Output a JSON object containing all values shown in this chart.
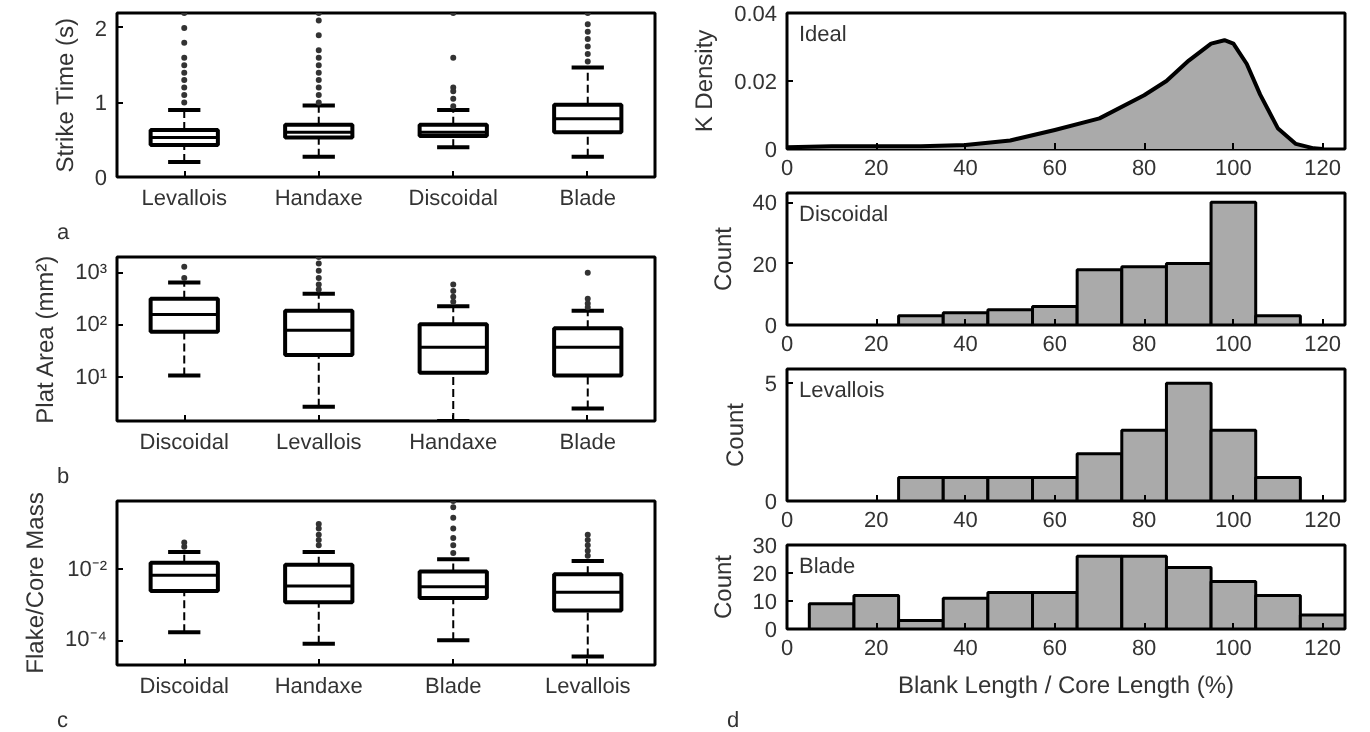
{
  "chart_data": [
    {
      "type": "box",
      "ylabel": "Strike Time (s)",
      "annotations": [
        "a"
      ],
      "categories": [
        "Levallois",
        "Handaxe",
        "Discoidal",
        "Blade"
      ],
      "ylim": [
        0,
        2.2
      ],
      "yticks": [
        0,
        1,
        2
      ],
      "boxes": [
        {
          "low": 0.2,
          "q1": 0.43,
          "median": 0.53,
          "q3": 0.63,
          "high": 0.9,
          "outliers": [
            1.0,
            1.1,
            1.2,
            1.3,
            1.4,
            1.5,
            1.6,
            1.8,
            2.0,
            2.2
          ]
        },
        {
          "low": 0.27,
          "q1": 0.53,
          "median": 0.6,
          "q3": 0.7,
          "high": 0.96,
          "outliers": [
            1.0,
            1.1,
            1.2,
            1.3,
            1.4,
            1.5,
            1.6,
            1.7,
            1.9,
            2.1,
            2.2
          ]
        },
        {
          "low": 0.4,
          "q1": 0.55,
          "median": 0.6,
          "q3": 0.7,
          "high": 0.9,
          "outliers": [
            0.95,
            1.05,
            1.15,
            1.2,
            1.6,
            2.2
          ]
        },
        {
          "low": 0.27,
          "q1": 0.6,
          "median": 0.78,
          "q3": 0.97,
          "high": 1.47,
          "outliers": [
            1.55,
            1.65,
            1.75,
            1.85,
            1.95,
            2.05,
            2.2
          ]
        }
      ]
    },
    {
      "type": "box",
      "ylabel": "Plat Area (mm²)",
      "annotations": [
        "b"
      ],
      "categories": [
        "Discoidal",
        "Levallois",
        "Handaxe",
        "Blade"
      ],
      "log": true,
      "ylim": [
        1.5,
        2000
      ],
      "yticks": [
        {
          "value": 10,
          "label": "10¹"
        },
        {
          "value": 100,
          "label": "10²"
        },
        {
          "value": 1000,
          "label": "10³"
        }
      ],
      "boxes": [
        {
          "low": 11,
          "q1": 75,
          "median": 160,
          "q3": 320,
          "high": 650,
          "outliers": [
            800,
            1300
          ]
        },
        {
          "low": 2.8,
          "q1": 27,
          "median": 80,
          "q3": 190,
          "high": 400,
          "outliers": [
            480,
            600,
            800,
            1100,
            1500,
            2000
          ]
        },
        {
          "low": 1.5,
          "q1": 12.5,
          "median": 38,
          "q3": 105,
          "high": 230,
          "outliers": [
            280,
            350,
            450,
            600
          ]
        },
        {
          "low": 2.6,
          "q1": 11,
          "median": 38,
          "q3": 88,
          "high": 190,
          "outliers": [
            220,
            260,
            320,
            1000
          ]
        }
      ]
    },
    {
      "type": "box",
      "ylabel": "Flake/Core Mass",
      "annotations": [
        "c"
      ],
      "categories": [
        "Discoidal",
        "Handaxe",
        "Blade",
        "Levallois"
      ],
      "log": true,
      "ylim": [
        2e-05,
        0.9
      ],
      "yticks": [
        {
          "value": 0.0001,
          "label": "10⁻⁴"
        },
        {
          "value": 0.01,
          "label": "10⁻²"
        }
      ],
      "boxes": [
        {
          "low": 0.00017,
          "q1": 0.0025,
          "median": 0.007,
          "q3": 0.016,
          "high": 0.032,
          "outliers": [
            0.045,
            0.06
          ]
        },
        {
          "low": 8e-05,
          "q1": 0.0012,
          "median": 0.0035,
          "q3": 0.014,
          "high": 0.032,
          "outliers": [
            0.05,
            0.07,
            0.1,
            0.15,
            0.2
          ]
        },
        {
          "low": 0.0001,
          "q1": 0.0016,
          "median": 0.0033,
          "q3": 0.009,
          "high": 0.02,
          "outliers": [
            0.03,
            0.05,
            0.08,
            0.15,
            0.3,
            0.6,
            0.9
          ]
        },
        {
          "low": 3.5e-05,
          "q1": 0.0007,
          "median": 0.0023,
          "q3": 0.0075,
          "high": 0.018,
          "outliers": [
            0.025,
            0.035,
            0.05,
            0.07,
            0.1
          ]
        }
      ]
    },
    {
      "type": "area",
      "ylabel": "K Density",
      "annotations": [
        "Ideal"
      ],
      "xlim": [
        0,
        125
      ],
      "xticks": [
        0,
        20,
        40,
        60,
        80,
        100,
        120
      ],
      "ylim": [
        0,
        0.04
      ],
      "yticks": [
        0,
        0.02,
        0.04
      ],
      "color": "#aaaaaa",
      "x": [
        0,
        10,
        20,
        30,
        40,
        50,
        60,
        70,
        80,
        85,
        90,
        95,
        98,
        100,
        103,
        106,
        110,
        114,
        118,
        120
      ],
      "values": [
        0.0005,
        0.0008,
        0.0008,
        0.0008,
        0.0012,
        0.0025,
        0.0056,
        0.009,
        0.0158,
        0.02,
        0.026,
        0.031,
        0.032,
        0.031,
        0.025,
        0.016,
        0.006,
        0.0015,
        0.0002,
        0
      ]
    },
    {
      "type": "histogram",
      "ylabel": "Count",
      "annotations": [
        "Discoidal"
      ],
      "xlim": [
        0,
        125
      ],
      "xticks": [
        0,
        20,
        40,
        60,
        80,
        100,
        120
      ],
      "ylim": [
        0,
        43
      ],
      "yticks": [
        0,
        20,
        40
      ],
      "color": "#aaaaaa",
      "bins": [
        25,
        35,
        45,
        55,
        65,
        75,
        85,
        95,
        105,
        115
      ],
      "values": [
        3,
        4,
        5,
        6,
        18,
        19,
        20,
        40,
        3
      ]
    },
    {
      "type": "histogram",
      "ylabel": "Count",
      "annotations": [
        "Levallois"
      ],
      "xlim": [
        0,
        125
      ],
      "xticks": [
        0,
        20,
        40,
        60,
        80,
        100,
        120
      ],
      "ylim": [
        0,
        5.6
      ],
      "yticks": [
        0,
        5
      ],
      "color": "#aaaaaa",
      "bins": [
        25,
        35,
        45,
        55,
        65,
        75,
        85,
        95,
        105,
        115
      ],
      "values": [
        1,
        1,
        1,
        1,
        2,
        3,
        5,
        3,
        1
      ]
    },
    {
      "type": "histogram",
      "ylabel": "Count",
      "xlabel": "Blank Length / Core Length (%)",
      "annotations": [
        "Blade",
        "d"
      ],
      "xlim": [
        0,
        125
      ],
      "xticks": [
        0,
        20,
        40,
        60,
        80,
        100,
        120
      ],
      "ylim": [
        0,
        30
      ],
      "yticks": [
        0,
        10,
        20,
        30
      ],
      "color": "#aaaaaa",
      "bins": [
        5,
        15,
        25,
        35,
        45,
        55,
        65,
        75,
        85,
        95,
        105,
        115,
        125
      ],
      "values": [
        9,
        12,
        3,
        11,
        13,
        13,
        26,
        26,
        22,
        17,
        12,
        5
      ]
    }
  ]
}
